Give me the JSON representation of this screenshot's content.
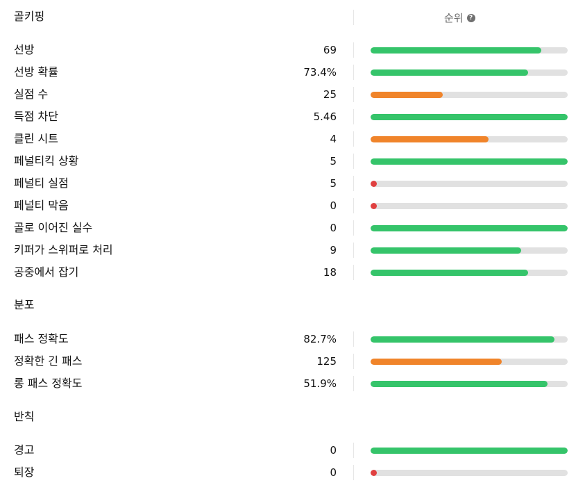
{
  "rank_header": "순위",
  "help_icon": "?",
  "colors": {
    "green": "#35c46a",
    "orange": "#f0842a",
    "red": "#e04040",
    "track": "#e1e1e1"
  },
  "sections": [
    {
      "title": "골키핑",
      "rows": [
        {
          "label": "선방",
          "value": "69",
          "fill": 0.866,
          "color": "green"
        },
        {
          "label": "선방 확률",
          "value": "73.4%",
          "fill": 0.8,
          "color": "green"
        },
        {
          "label": "실점 수",
          "value": "25",
          "fill": 0.366,
          "color": "orange"
        },
        {
          "label": "득점 차단",
          "value": "5.46",
          "fill": 1.0,
          "color": "green"
        },
        {
          "label": "클린 시트",
          "value": "4",
          "fill": 0.6,
          "color": "orange"
        },
        {
          "label": "페널티킥 상황",
          "value": "5",
          "fill": 1.0,
          "color": "green"
        },
        {
          "label": "페널티 실점",
          "value": "5",
          "fill": 0.03,
          "color": "red"
        },
        {
          "label": "페널티 막음",
          "value": "0",
          "fill": 0.03,
          "color": "red"
        },
        {
          "label": "골로 이어진 실수",
          "value": "0",
          "fill": 1.0,
          "color": "green"
        },
        {
          "label": "키퍼가 스위퍼로 처리",
          "value": "9",
          "fill": 0.764,
          "color": "green"
        },
        {
          "label": "공중에서 잡기",
          "value": "18",
          "fill": 0.8,
          "color": "green"
        }
      ]
    },
    {
      "title": "분포",
      "rows": [
        {
          "label": "패스 정확도",
          "value": "82.7%",
          "fill": 0.933,
          "color": "green"
        },
        {
          "label": "정확한 긴 패스",
          "value": "125",
          "fill": 0.665,
          "color": "orange"
        },
        {
          "label": "롱 패스 정확도",
          "value": "51.9%",
          "fill": 0.898,
          "color": "green"
        }
      ]
    },
    {
      "title": "반칙",
      "rows": [
        {
          "label": "경고",
          "value": "0",
          "fill": 1.0,
          "color": "green"
        },
        {
          "label": "퇴장",
          "value": "0",
          "fill": 0.03,
          "color": "red"
        }
      ]
    }
  ]
}
